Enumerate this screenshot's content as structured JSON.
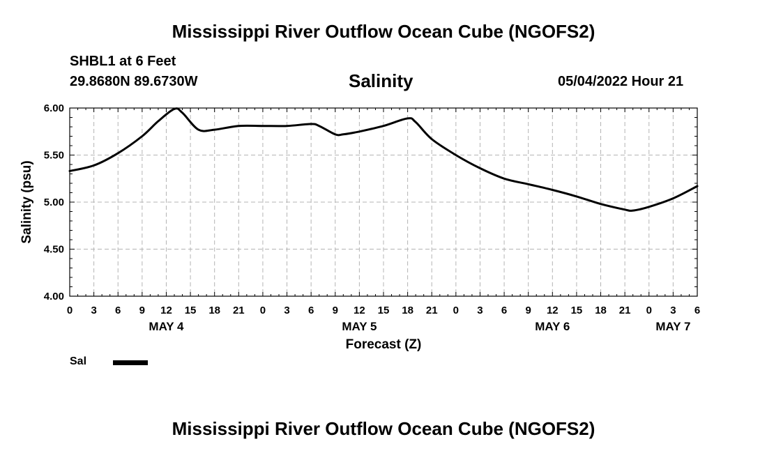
{
  "header": {
    "title": "Mississippi River Outflow Ocean Cube (NGOFS2)",
    "station": "SHBL1 at 6 Feet",
    "coords": "29.8680N  89.6730W",
    "variable": "Salinity",
    "datetime": "05/04/2022 Hour 21"
  },
  "footer": {
    "title": "Mississippi River Outflow Ocean Cube (NGOFS2)"
  },
  "legend": {
    "entries": [
      {
        "label": "Sal",
        "color": "#000000"
      }
    ]
  },
  "chart_data": {
    "type": "line",
    "title": "Salinity",
    "xlabel": "Forecast (Z)",
    "ylabel": "Salinity (psu)",
    "xlim": [
      0,
      78
    ],
    "ylim": [
      4.0,
      6.0
    ],
    "grid": true,
    "x_tick_labels": [
      "0",
      "3",
      "6",
      "9",
      "12",
      "15",
      "18",
      "21",
      "0",
      "3",
      "6",
      "9",
      "12",
      "15",
      "18",
      "21",
      "0",
      "3",
      "6",
      "9",
      "12",
      "15",
      "18",
      "21",
      "0",
      "3",
      "6"
    ],
    "y_ticks": [
      {
        "value": 4.0,
        "label": "4.00"
      },
      {
        "value": 4.5,
        "label": "4.50"
      },
      {
        "value": 5.0,
        "label": "5.00"
      },
      {
        "value": 5.5,
        "label": "5.50"
      },
      {
        "value": 6.0,
        "label": "6.00"
      }
    ],
    "date_labels": [
      {
        "hour": 12,
        "label": "MAY 4"
      },
      {
        "hour": 36,
        "label": "MAY 5"
      },
      {
        "hour": 60,
        "label": "MAY 6"
      },
      {
        "hour": 75,
        "label": "MAY 7"
      }
    ],
    "series": [
      {
        "name": "Sal",
        "color": "#000000",
        "x": [
          0,
          3,
          6,
          9,
          11,
          13,
          14,
          16,
          18,
          21,
          24,
          27,
          30,
          31,
          33,
          34,
          36,
          39,
          42,
          43,
          45,
          48,
          51,
          54,
          57,
          60,
          63,
          66,
          69,
          70,
          72,
          75,
          78
        ],
        "y": [
          5.33,
          5.39,
          5.52,
          5.7,
          5.86,
          5.99,
          5.95,
          5.77,
          5.77,
          5.81,
          5.81,
          5.81,
          5.83,
          5.81,
          5.72,
          5.72,
          5.75,
          5.81,
          5.89,
          5.85,
          5.67,
          5.5,
          5.36,
          5.25,
          5.19,
          5.13,
          5.06,
          4.98,
          4.92,
          4.91,
          4.95,
          5.04,
          5.17
        ]
      }
    ]
  }
}
